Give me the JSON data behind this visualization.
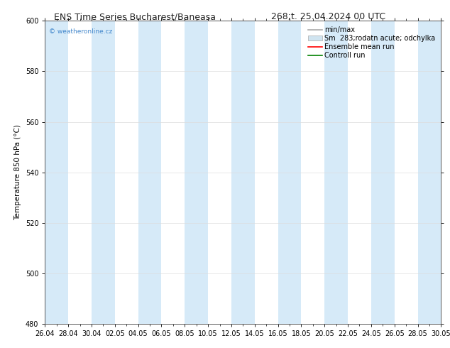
{
  "title_left": "ENS Time Series Bucharest/Baneasa",
  "title_right": "268;t. 25.04.2024 00 UTC",
  "ylabel": "Temperature 850 hPa (°C)",
  "ylim": [
    480,
    600
  ],
  "yticks": [
    480,
    500,
    520,
    540,
    560,
    580,
    600
  ],
  "x_tick_labels": [
    "26.04",
    "28.04",
    "30.04",
    "02.05",
    "04.05",
    "06.05",
    "08.05",
    "10.05",
    "12.05",
    "14.05",
    "16.05",
    "18.05",
    "20.05",
    "22.05",
    "24.05",
    "26.05",
    "28.05",
    "30.05"
  ],
  "band_color": "#d6eaf8",
  "band_alpha": 1.0,
  "background_color": "#ffffff",
  "watermark_text": "© weatheronline.cz",
  "watermark_color": "#4488cc",
  "title_fontsize": 9,
  "axis_fontsize": 7.5,
  "tick_fontsize": 7,
  "legend_fontsize": 7,
  "gray_line_color": "#aaaaaa",
  "band_legend_color": "#d0e4f0",
  "red_line_color": "#ff0000",
  "green_line_color": "#008000",
  "grid_color": "#dddddd",
  "spine_color": "#555555",
  "legend_label_minmax": "min/max",
  "legend_label_sm": "Sm  283;rodatn acute; odchylka",
  "legend_label_ens": "Ensemble mean run",
  "legend_label_ctrl": "Controll run"
}
